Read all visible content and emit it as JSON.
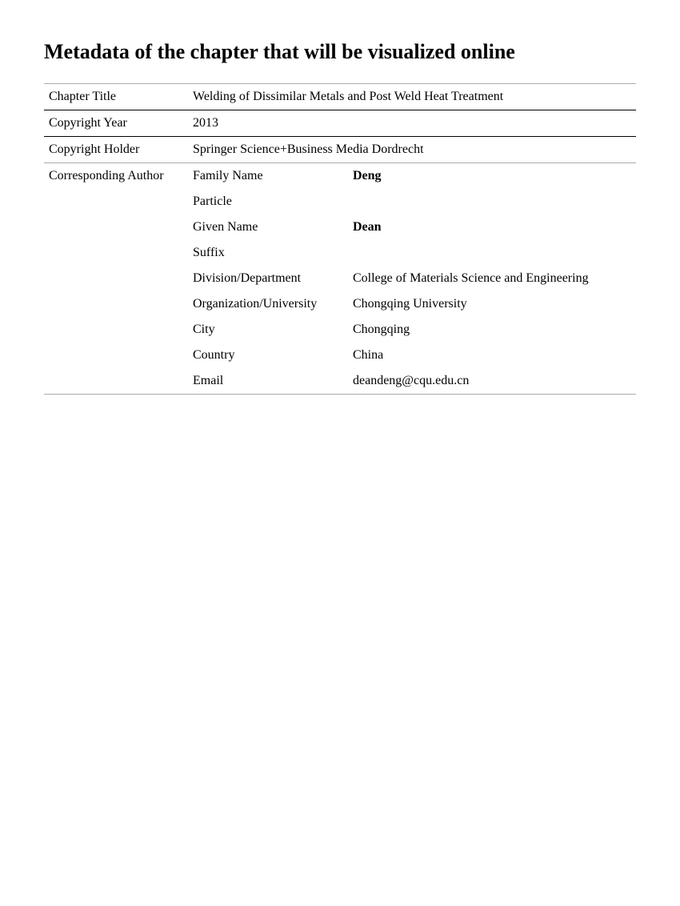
{
  "page_title": "Metadata of the chapter that will be visualized online",
  "table": {
    "rows": [
      {
        "label": "Chapter Title",
        "value": "Welding of Dissimilar Metals and Post Weld Heat Treatment"
      },
      {
        "label": "Copyright Year",
        "value": "2013"
      },
      {
        "label": "Copyright Holder",
        "value": "Springer Science+Business Media Dordrecht"
      }
    ],
    "author_label": "Corresponding Author",
    "author_fields": [
      {
        "sublabel": "Family Name",
        "value": "Deng",
        "bold": true
      },
      {
        "sublabel": "Particle",
        "value": ""
      },
      {
        "sublabel": "Given Name",
        "value": "Dean",
        "bold": true
      },
      {
        "sublabel": "Suffix",
        "value": ""
      },
      {
        "sublabel": "Division/Department",
        "value": "College of Materials Science and Engineering"
      },
      {
        "sublabel": "Organization/University",
        "value": "Chongqing University"
      },
      {
        "sublabel": "City",
        "value": "Chongqing"
      },
      {
        "sublabel": "Country",
        "value": "China"
      },
      {
        "sublabel": "Email",
        "value": "deandeng@cqu.edu.cn"
      }
    ]
  },
  "styling": {
    "page_bg": "#ffffff",
    "text_color": "#000000",
    "light_border": "#aaaaaa",
    "heavy_border": "#000000",
    "font_family": "Times New Roman",
    "title_fontsize": 26,
    "body_fontsize": 16
  }
}
